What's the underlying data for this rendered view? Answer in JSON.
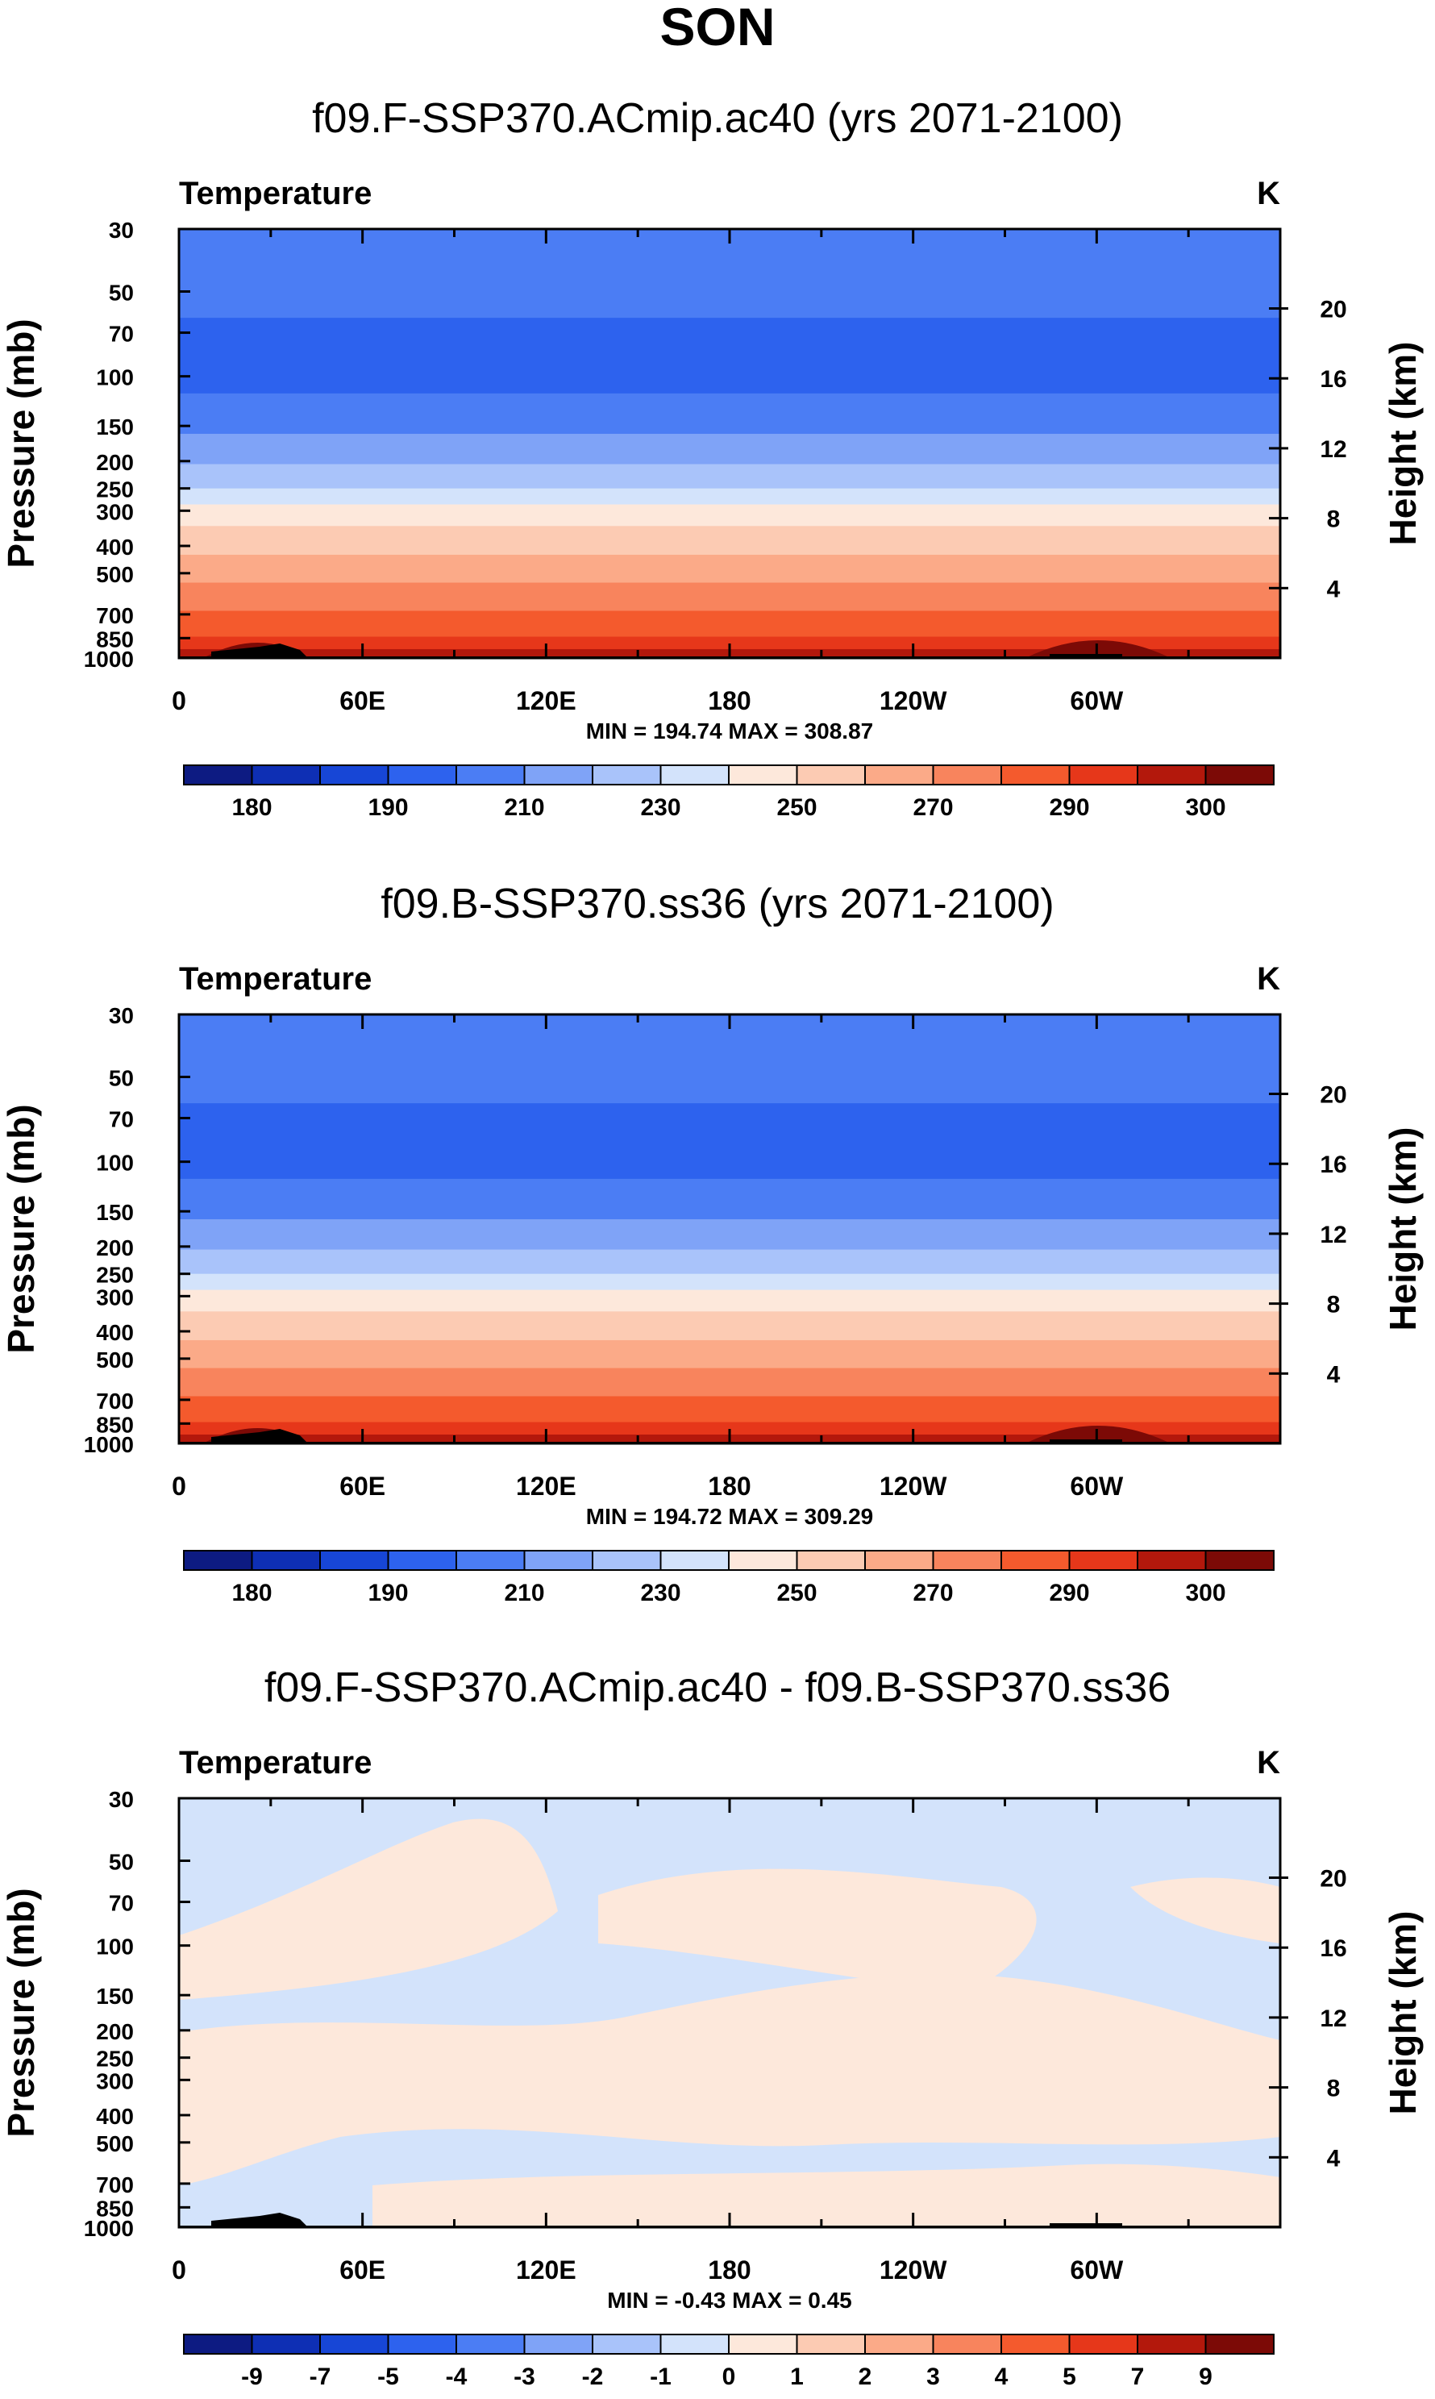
{
  "figure": {
    "title": "SON"
  },
  "chart_data": [
    {
      "type": "heatmap",
      "title": "f09.F-SSP370.ACmip.ac40 (yrs 2071-2100)",
      "variable": "Temperature",
      "units": "K",
      "ylabel": "Pressure (mb)",
      "ylabel_right": "Height (km)",
      "xlabel": "",
      "pressure_ticks": [
        30,
        50,
        70,
        100,
        150,
        200,
        250,
        300,
        400,
        500,
        700,
        850,
        1000
      ],
      "height_ticks": [
        20,
        16,
        12,
        8,
        4
      ],
      "lon_ticks": [
        "0",
        "60E",
        "120E",
        "180",
        "120W",
        "60W"
      ],
      "minmax_label": "MIN = 194.74  MAX = 308.87",
      "min": 194.74,
      "max": 308.87,
      "colorbar_labels": [
        "180",
        "190",
        "210",
        "230",
        "250",
        "270",
        "290",
        "300"
      ],
      "colorbar_colors": [
        "#0d1b82",
        "#0e2fb4",
        "#1746d6",
        "#2d62ee",
        "#4b7df4",
        "#7fa3f7",
        "#a9c3fa",
        "#d3e3fb",
        "#fde8db",
        "#fccbb3",
        "#fbaa88",
        "#f8845d",
        "#f45a2d",
        "#e6371a",
        "#b3180c",
        "#7c0a06"
      ],
      "bands": [
        {
          "p": 30,
          "color": "#4b7df4"
        },
        {
          "p": 62,
          "color": "#2d62ee"
        },
        {
          "p": 115,
          "color": "#4b7df4"
        },
        {
          "p": 160,
          "color": "#7fa3f7"
        },
        {
          "p": 205,
          "color": "#a9c3fa"
        },
        {
          "p": 250,
          "color": "#d3e3fb"
        },
        {
          "p": 285,
          "color": "#fde8db"
        },
        {
          "p": 340,
          "color": "#fccbb3"
        },
        {
          "p": 430,
          "color": "#fbaa88"
        },
        {
          "p": 540,
          "color": "#f8845d"
        },
        {
          "p": 680,
          "color": "#f45a2d"
        },
        {
          "p": 840,
          "color": "#e6371a"
        },
        {
          "p": 930,
          "color": "#b3180c"
        }
      ]
    },
    {
      "type": "heatmap",
      "title": "f09.B-SSP370.ss36 (yrs 2071-2100)",
      "variable": "Temperature",
      "units": "K",
      "ylabel": "Pressure (mb)",
      "ylabel_right": "Height (km)",
      "xlabel": "",
      "pressure_ticks": [
        30,
        50,
        70,
        100,
        150,
        200,
        250,
        300,
        400,
        500,
        700,
        850,
        1000
      ],
      "height_ticks": [
        20,
        16,
        12,
        8,
        4
      ],
      "lon_ticks": [
        "0",
        "60E",
        "120E",
        "180",
        "120W",
        "60W"
      ],
      "minmax_label": "MIN = 194.72  MAX = 309.29",
      "min": 194.72,
      "max": 309.29,
      "colorbar_labels": [
        "180",
        "190",
        "210",
        "230",
        "250",
        "270",
        "290",
        "300"
      ],
      "colorbar_colors": [
        "#0d1b82",
        "#0e2fb4",
        "#1746d6",
        "#2d62ee",
        "#4b7df4",
        "#7fa3f7",
        "#a9c3fa",
        "#d3e3fb",
        "#fde8db",
        "#fccbb3",
        "#fbaa88",
        "#f8845d",
        "#f45a2d",
        "#e6371a",
        "#b3180c",
        "#7c0a06"
      ],
      "bands": [
        {
          "p": 30,
          "color": "#4b7df4"
        },
        {
          "p": 62,
          "color": "#2d62ee"
        },
        {
          "p": 115,
          "color": "#4b7df4"
        },
        {
          "p": 160,
          "color": "#7fa3f7"
        },
        {
          "p": 205,
          "color": "#a9c3fa"
        },
        {
          "p": 250,
          "color": "#d3e3fb"
        },
        {
          "p": 285,
          "color": "#fde8db"
        },
        {
          "p": 340,
          "color": "#fccbb3"
        },
        {
          "p": 430,
          "color": "#fbaa88"
        },
        {
          "p": 540,
          "color": "#f8845d"
        },
        {
          "p": 680,
          "color": "#f45a2d"
        },
        {
          "p": 840,
          "color": "#e6371a"
        },
        {
          "p": 930,
          "color": "#b3180c"
        }
      ]
    },
    {
      "type": "heatmap",
      "title": "f09.F-SSP370.ACmip.ac40 - f09.B-SSP370.ss36",
      "variable": "Temperature",
      "units": "K",
      "ylabel": "Pressure (mb)",
      "ylabel_right": "Height (km)",
      "xlabel": "",
      "pressure_ticks": [
        30,
        50,
        70,
        100,
        150,
        200,
        250,
        300,
        400,
        500,
        700,
        850,
        1000
      ],
      "height_ticks": [
        20,
        16,
        12,
        8,
        4
      ],
      "lon_ticks": [
        "0",
        "60E",
        "120E",
        "180",
        "120W",
        "60W"
      ],
      "minmax_label": "MIN =  -0.43  MAX =   0.45",
      "min": -0.43,
      "max": 0.45,
      "colorbar_labels": [
        "-9",
        "-7",
        "-5",
        "-4",
        "-3",
        "-2",
        "-1",
        "0",
        "1",
        "2",
        "3",
        "4",
        "5",
        "7",
        "9"
      ],
      "colorbar_colors": [
        "#0d1b82",
        "#0e2fb4",
        "#1746d6",
        "#2d62ee",
        "#4b7df4",
        "#7fa3f7",
        "#a9c3fa",
        "#d3e3fb",
        "#fde8db",
        "#fccbb3",
        "#fbaa88",
        "#f8845d",
        "#f45a2d",
        "#e6371a",
        "#b3180c",
        "#7c0a06"
      ],
      "background_color": "#d3e3fb",
      "positive_color": "#fde8db"
    }
  ]
}
